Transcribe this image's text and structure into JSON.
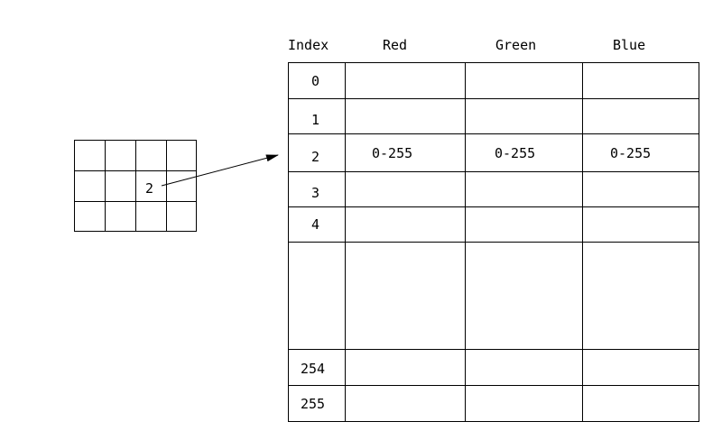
{
  "colormap_table": {
    "headers": [
      "Index",
      "Red",
      "Green",
      "Blue"
    ],
    "rows": [
      {
        "index": "0",
        "red": "",
        "green": "",
        "blue": ""
      },
      {
        "index": "1",
        "red": "",
        "green": "",
        "blue": ""
      },
      {
        "index": "2",
        "red": "0-255",
        "green": "0-255",
        "blue": "0-255"
      },
      {
        "index": "3",
        "red": "",
        "green": "",
        "blue": ""
      },
      {
        "index": "4",
        "red": "",
        "green": "",
        "blue": ""
      },
      {
        "index": "",
        "red": "",
        "green": "",
        "blue": ""
      },
      {
        "index": "254",
        "red": "",
        "green": "",
        "blue": ""
      },
      {
        "index": "255",
        "red": "",
        "green": "",
        "blue": ""
      }
    ]
  },
  "pixel_grid": {
    "rows": 3,
    "cols": 4,
    "highlighted_value": "2",
    "highlighted_row": 1,
    "highlighted_col": 2
  },
  "arrow": {
    "from": "pixel_grid",
    "to_row_index": "2"
  }
}
